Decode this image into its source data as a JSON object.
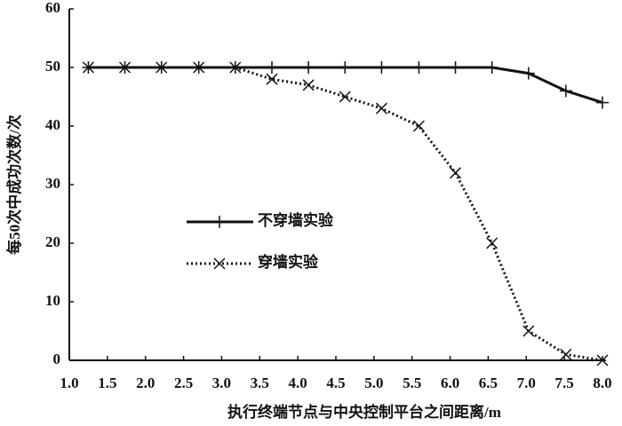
{
  "chart_data": {
    "type": "line",
    "x_label": "执行终端节点与中央控制平台之间距离/m",
    "y_label": "每50次中成功次数/次",
    "x": [
      1.25,
      1.73,
      2.21,
      2.7,
      3.18,
      3.66,
      4.14,
      4.62,
      5.1,
      5.59,
      6.07,
      6.55,
      7.03,
      7.52,
      8.0
    ],
    "series": [
      {
        "name": "不穿墙实验",
        "color": "#111111",
        "linestyle": "solid",
        "marker": "plus",
        "values": [
          50,
          50,
          50,
          50,
          50,
          50,
          50,
          50,
          50,
          50,
          50,
          50,
          49,
          46,
          44
        ]
      },
      {
        "name": "穿墙实验",
        "color": "#111111",
        "linestyle": "dotted",
        "marker": "cross",
        "values": [
          50,
          50,
          50,
          50,
          50,
          48,
          47,
          45,
          43,
          40,
          32,
          20,
          5,
          1,
          0
        ]
      }
    ],
    "xlim": [
      1,
      8
    ],
    "xticks": [
      {
        "value": 1,
        "label": "1.0"
      },
      1.5,
      {
        "value": 2,
        "label": "2.0"
      },
      2.5,
      {
        "value": 3,
        "label": "3.0"
      },
      3.5,
      {
        "value": 4,
        "label": "4.0"
      },
      4.5,
      {
        "value": 5,
        "label": "5.0"
      },
      5.5,
      {
        "value": 6,
        "label": "6.0"
      },
      6.5,
      {
        "value": 7,
        "label": "7.0"
      },
      7.5,
      {
        "value": 8,
        "label": "8.0"
      }
    ],
    "ylim": [
      0,
      60
    ],
    "yticks": [
      0,
      10,
      20,
      30,
      40,
      50,
      60
    ],
    "grid": false,
    "legend": "center-left"
  }
}
